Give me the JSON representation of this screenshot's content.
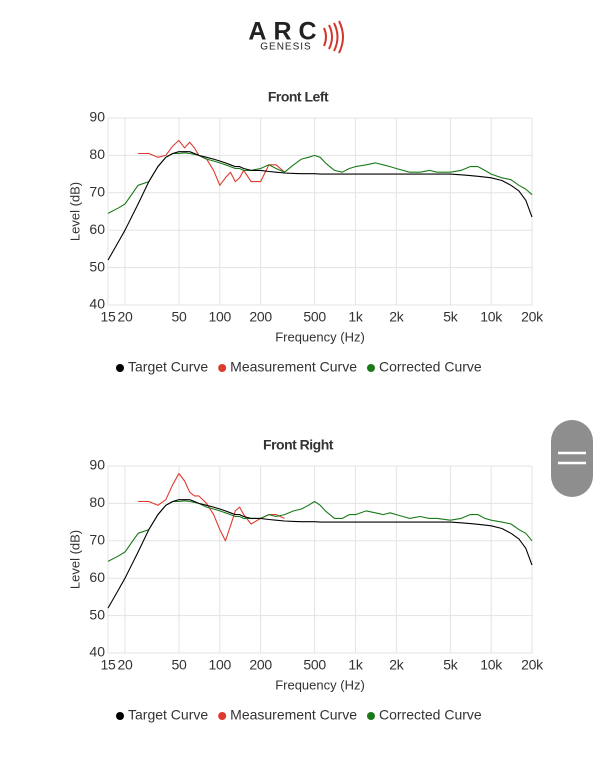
{
  "logo": {
    "title": "ARC",
    "subtitle": "GENESIS"
  },
  "chart_data": [
    {
      "type": "line",
      "title": "Front Left",
      "x_label": "Frequency (Hz)",
      "y_label": "Level (dB)",
      "xscale": "log",
      "grid": true,
      "xlim": [
        15,
        20000
      ],
      "ylim": [
        40,
        90
      ],
      "xticks": [
        15,
        20,
        50,
        100,
        200,
        500,
        {
          "value": 1000,
          "label": "1k"
        },
        {
          "value": 2000,
          "label": "2k"
        },
        {
          "value": 5000,
          "label": "5k"
        },
        {
          "value": 10000,
          "label": "10k"
        },
        {
          "value": 20000,
          "label": "20k"
        }
      ],
      "yticks": [
        40,
        50,
        60,
        70,
        80,
        90
      ],
      "x": [
        15,
        18,
        20,
        25,
        30,
        35,
        40,
        45,
        50,
        55,
        60,
        65,
        70,
        80,
        90,
        100,
        110,
        120,
        130,
        140,
        150,
        170,
        200,
        230,
        260,
        300,
        350,
        400,
        450,
        500,
        550,
        600,
        700,
        800,
        900,
        1000,
        1200,
        1400,
        1600,
        1800,
        2000,
        2500,
        3000,
        3500,
        4000,
        5000,
        6000,
        7000,
        8000,
        9000,
        10000,
        12000,
        14000,
        16000,
        18000,
        20000
      ],
      "series": [
        {
          "name": "Target Curve",
          "color": "#000000",
          "values": [
            52,
            57,
            60,
            67,
            73,
            77,
            79.5,
            80.5,
            81,
            81,
            81,
            80.5,
            80,
            79.5,
            79,
            78.5,
            78,
            77.5,
            77,
            77,
            76.5,
            76,
            76,
            75.7,
            75.5,
            75.3,
            75.2,
            75.1,
            75.1,
            75.1,
            75,
            75,
            75,
            75,
            75,
            75,
            75,
            75,
            75,
            75,
            75,
            75,
            75,
            75,
            75,
            75,
            74.8,
            74.6,
            74.4,
            74.2,
            74,
            73.3,
            72,
            70.5,
            68,
            63.5
          ]
        },
        {
          "name": "Measurement Curve",
          "color": "#e03a2f",
          "values": [
            null,
            null,
            null,
            80.5,
            80.5,
            79.5,
            80,
            82.5,
            84,
            82,
            83.5,
            82,
            80,
            79,
            76,
            72,
            74,
            75.5,
            73,
            74,
            76,
            73,
            73,
            77.5,
            77.5,
            75.5,
            null,
            null,
            null,
            null,
            null,
            null,
            null,
            null,
            null,
            null,
            null,
            null,
            null,
            null,
            null,
            null,
            null,
            null,
            null,
            null,
            null,
            null,
            null,
            null,
            null,
            null,
            null,
            null,
            null,
            null
          ]
        },
        {
          "name": "Corrected Curve",
          "color": "#1a7a1a",
          "values": [
            64.5,
            66,
            67,
            72,
            73,
            77,
            79.5,
            80.5,
            80.5,
            80.7,
            80.5,
            80.3,
            80,
            79,
            78.5,
            78,
            77.5,
            77,
            76.5,
            76.5,
            76,
            76,
            76.5,
            77.5,
            76.5,
            75.5,
            77.5,
            79,
            79.5,
            80,
            79.5,
            78,
            76,
            75.5,
            76.5,
            77,
            77.5,
            78,
            77.5,
            77,
            76.5,
            75.5,
            75.5,
            76,
            75.5,
            75.5,
            76,
            77,
            77,
            76,
            75,
            74,
            73.5,
            72,
            71,
            69.5
          ]
        }
      ]
    },
    {
      "type": "line",
      "title": "Front Right",
      "x_label": "Frequency (Hz)",
      "y_label": "Level (dB)",
      "xscale": "log",
      "grid": true,
      "xlim": [
        15,
        20000
      ],
      "ylim": [
        40,
        90
      ],
      "xticks": [
        15,
        20,
        50,
        100,
        200,
        500,
        {
          "value": 1000,
          "label": "1k"
        },
        {
          "value": 2000,
          "label": "2k"
        },
        {
          "value": 5000,
          "label": "5k"
        },
        {
          "value": 10000,
          "label": "10k"
        },
        {
          "value": 20000,
          "label": "20k"
        }
      ],
      "yticks": [
        40,
        50,
        60,
        70,
        80,
        90
      ],
      "x": [
        15,
        18,
        20,
        25,
        30,
        35,
        40,
        45,
        50,
        55,
        60,
        65,
        70,
        80,
        90,
        100,
        110,
        120,
        130,
        140,
        150,
        170,
        200,
        230,
        260,
        300,
        350,
        400,
        450,
        500,
        550,
        600,
        700,
        800,
        900,
        1000,
        1200,
        1400,
        1600,
        1800,
        2000,
        2500,
        3000,
        3500,
        4000,
        5000,
        6000,
        7000,
        8000,
        9000,
        10000,
        12000,
        14000,
        16000,
        18000,
        20000
      ],
      "series": [
        {
          "name": "Target Curve",
          "color": "#000000",
          "values": [
            52,
            57,
            60,
            67,
            73,
            77,
            79.5,
            80.5,
            81,
            81,
            81,
            80.5,
            80,
            79.5,
            79,
            78.5,
            78,
            77.5,
            77,
            77,
            76.5,
            76,
            76,
            75.7,
            75.5,
            75.3,
            75.2,
            75.1,
            75.1,
            75.1,
            75,
            75,
            75,
            75,
            75,
            75,
            75,
            75,
            75,
            75,
            75,
            75,
            75,
            75,
            75,
            75,
            74.8,
            74.6,
            74.4,
            74.2,
            74,
            73.3,
            72,
            70.5,
            68,
            63.5
          ]
        },
        {
          "name": "Measurement Curve",
          "color": "#e03a2f",
          "values": [
            null,
            null,
            null,
            80.5,
            80.5,
            79.5,
            81,
            85,
            88,
            86,
            83,
            82,
            82,
            80,
            77,
            73,
            70,
            74,
            78,
            79,
            77,
            74.5,
            76,
            77,
            77,
            76,
            null,
            null,
            null,
            null,
            null,
            null,
            null,
            null,
            null,
            null,
            null,
            null,
            null,
            null,
            null,
            null,
            null,
            null,
            null,
            null,
            null,
            null,
            null,
            null,
            null,
            null,
            null,
            null,
            null,
            null
          ]
        },
        {
          "name": "Corrected Curve",
          "color": "#1a7a1a",
          "values": [
            64.5,
            66,
            67,
            72,
            73,
            77,
            79.5,
            80.5,
            80.5,
            80.7,
            80.5,
            80.3,
            80,
            79,
            78.5,
            78,
            77.5,
            77,
            76.5,
            76.5,
            76,
            76,
            76,
            77,
            76.5,
            77,
            78,
            78.5,
            79.5,
            80.5,
            79.5,
            78,
            76,
            76,
            77,
            77,
            78,
            77.5,
            77,
            77.5,
            77,
            76,
            76.5,
            76,
            76,
            75.5,
            76,
            77,
            77,
            76,
            75.5,
            75,
            74.5,
            73,
            72,
            70
          ]
        }
      ]
    }
  ]
}
